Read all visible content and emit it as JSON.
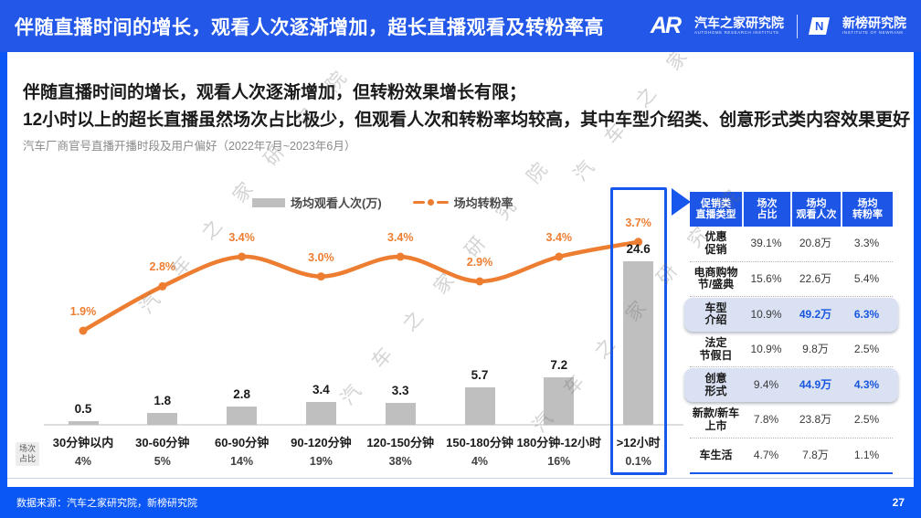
{
  "header": {
    "title": "伴随直播时间的增长，观看人次逐渐增加，超长直播观看及转粉率高",
    "autohome": {
      "mark": "AR",
      "name": "汽车之家研究院",
      "sub": "AUTOHOME RESEARCH INSTITUTE"
    },
    "newrank": {
      "mark": "N",
      "name": "新榜研究院",
      "sub": "INSTITUTE OF NEWRANK"
    }
  },
  "summary": {
    "line1": "伴随直播时间的增长，观看人次逐渐增加，但转粉效果增长有限；",
    "line2": "12小时以上的超长直播虽然场次占比极少，但观看人次和转粉率均较高，其中车型介绍类、创意形式类内容效果更好"
  },
  "chart_subtitle": "汽车厂商官号直播开播时段及用户偏好（2022年7月~2023年6月）",
  "colors": {
    "accent_blue": "#1757EC",
    "orange": "#ED7D31",
    "bar_gray": "#BFBFBF",
    "highlight_row_bg": "#D9E1F2"
  },
  "chart_data": {
    "type": "bar",
    "categories": [
      "30分钟以内",
      "30-60分钟",
      "60-90分钟",
      "90-120分钟",
      "120-150分钟",
      "150-180分钟",
      "180分钟-12小时",
      ">12小时"
    ],
    "series": [
      {
        "name": "场均观看人次(万)",
        "type": "bar",
        "color": "#BFBFBF",
        "values": [
          0.5,
          1.8,
          2.8,
          3.4,
          3.3,
          5.7,
          7.2,
          24.6
        ]
      },
      {
        "name": "场均转粉率",
        "type": "line",
        "color": "#ED7D31",
        "unit": "%",
        "values": [
          1.9,
          2.8,
          3.4,
          3.0,
          3.4,
          2.9,
          3.4,
          3.7
        ]
      }
    ],
    "share_row_label": "场次\n占比",
    "share_values": [
      "4%",
      "5%",
      "14%",
      "19%",
      "38%",
      "4%",
      "16%",
      "0.1%"
    ],
    "highlight_category": ">12小时",
    "legend_position": "top",
    "grid": false
  },
  "table": {
    "headers": [
      "促销类\n直播类型",
      "场次\n占比",
      "场均\n观看人次",
      "场均\n转粉率"
    ],
    "rows": [
      {
        "type": "优惠\n促销",
        "share": "39.1%",
        "viewers": "20.8万",
        "conversion": "3.3%",
        "highlight": false
      },
      {
        "type": "电商购物\n节/盛典",
        "share": "15.6%",
        "viewers": "22.6万",
        "conversion": "5.4%",
        "highlight": false
      },
      {
        "type": "车型\n介绍",
        "share": "10.9%",
        "viewers": "49.2万",
        "conversion": "6.3%",
        "highlight": true
      },
      {
        "type": "法定\n节假日",
        "share": "10.9%",
        "viewers": "9.8万",
        "conversion": "2.5%",
        "highlight": false
      },
      {
        "type": "创意\n形式",
        "share": "9.4%",
        "viewers": "44.9万",
        "conversion": "4.3%",
        "highlight": true
      },
      {
        "type": "新款/新车\n上市",
        "share": "7.8%",
        "viewers": "23.8万",
        "conversion": "2.5%",
        "highlight": false
      },
      {
        "type": "车生活",
        "share": "4.7%",
        "viewers": "7.8万",
        "conversion": "1.1%",
        "highlight": false
      }
    ]
  },
  "footer": {
    "source": "数据来源：汽车之家研究院，新榜研究院",
    "page": "27"
  },
  "watermark_text": "汽 车 之 家 研 究 院"
}
